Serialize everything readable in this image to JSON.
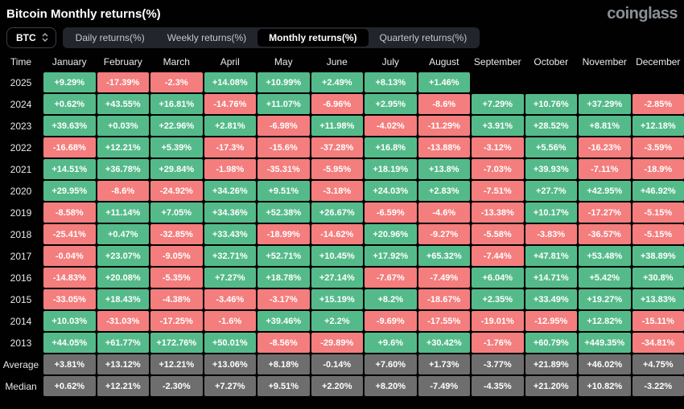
{
  "header": {
    "title": "Bitcoin Monthly returns(%)",
    "logo": "coinglass"
  },
  "controls": {
    "coin_selector": {
      "value": "BTC",
      "icon": "updown-chevron-icon"
    },
    "tabs": [
      {
        "label": "Daily returns(%)",
        "active": false
      },
      {
        "label": "Weekly returns(%)",
        "active": false
      },
      {
        "label": "Monthly returns(%)",
        "active": true
      },
      {
        "label": "Quarterly returns(%)",
        "active": false
      }
    ]
  },
  "chart_data": {
    "type": "heatmap",
    "title": "Bitcoin Monthly returns(%)",
    "columns": [
      "Time",
      "January",
      "February",
      "March",
      "April",
      "May",
      "June",
      "July",
      "August",
      "September",
      "October",
      "November",
      "December"
    ],
    "rows": [
      {
        "label": "2025",
        "values": [
          "+9.29%",
          "-17.39%",
          "-2.3%",
          "+14.08%",
          "+10.99%",
          "+2.49%",
          "+8.13%",
          "+1.46%",
          "",
          "",
          "",
          ""
        ]
      },
      {
        "label": "2024",
        "values": [
          "+0.62%",
          "+43.55%",
          "+16.81%",
          "-14.76%",
          "+11.07%",
          "-6.96%",
          "+2.95%",
          "-8.6%",
          "+7.29%",
          "+10.76%",
          "+37.29%",
          "-2.85%"
        ]
      },
      {
        "label": "2023",
        "values": [
          "+39.63%",
          "+0.03%",
          "+22.96%",
          "+2.81%",
          "-6.98%",
          "+11.98%",
          "-4.02%",
          "-11.29%",
          "+3.91%",
          "+28.52%",
          "+8.81%",
          "+12.18%"
        ]
      },
      {
        "label": "2022",
        "values": [
          "-16.68%",
          "+12.21%",
          "+5.39%",
          "-17.3%",
          "-15.6%",
          "-37.28%",
          "+16.8%",
          "-13.88%",
          "-3.12%",
          "+5.56%",
          "-16.23%",
          "-3.59%"
        ]
      },
      {
        "label": "2021",
        "values": [
          "+14.51%",
          "+36.78%",
          "+29.84%",
          "-1.98%",
          "-35.31%",
          "-5.95%",
          "+18.19%",
          "+13.8%",
          "-7.03%",
          "+39.93%",
          "-7.11%",
          "-18.9%"
        ]
      },
      {
        "label": "2020",
        "values": [
          "+29.95%",
          "-8.6%",
          "-24.92%",
          "+34.26%",
          "+9.51%",
          "-3.18%",
          "+24.03%",
          "+2.83%",
          "-7.51%",
          "+27.7%",
          "+42.95%",
          "+46.92%"
        ]
      },
      {
        "label": "2019",
        "values": [
          "-8.58%",
          "+11.14%",
          "+7.05%",
          "+34.36%",
          "+52.38%",
          "+26.67%",
          "-6.59%",
          "-4.6%",
          "-13.38%",
          "+10.17%",
          "-17.27%",
          "-5.15%"
        ]
      },
      {
        "label": "2018",
        "values": [
          "-25.41%",
          "+0.47%",
          "-32.85%",
          "+33.43%",
          "-18.99%",
          "-14.62%",
          "+20.96%",
          "-9.27%",
          "-5.58%",
          "-3.83%",
          "-36.57%",
          "-5.15%"
        ]
      },
      {
        "label": "2017",
        "values": [
          "-0.04%",
          "+23.07%",
          "-9.05%",
          "+32.71%",
          "+52.71%",
          "+10.45%",
          "+17.92%",
          "+65.32%",
          "-7.44%",
          "+47.81%",
          "+53.48%",
          "+38.89%"
        ]
      },
      {
        "label": "2016",
        "values": [
          "-14.83%",
          "+20.08%",
          "-5.35%",
          "+7.27%",
          "+18.78%",
          "+27.14%",
          "-7.67%",
          "-7.49%",
          "+6.04%",
          "+14.71%",
          "+5.42%",
          "+30.8%"
        ]
      },
      {
        "label": "2015",
        "values": [
          "-33.05%",
          "+18.43%",
          "-4.38%",
          "-3.46%",
          "-3.17%",
          "+15.19%",
          "+8.2%",
          "-18.67%",
          "+2.35%",
          "+33.49%",
          "+19.27%",
          "+13.83%"
        ]
      },
      {
        "label": "2014",
        "values": [
          "+10.03%",
          "-31.03%",
          "-17.25%",
          "-1.6%",
          "+39.46%",
          "+2.2%",
          "-9.69%",
          "-17.55%",
          "-19.01%",
          "-12.95%",
          "+12.82%",
          "-15.11%"
        ]
      },
      {
        "label": "2013",
        "values": [
          "+44.05%",
          "+61.77%",
          "+172.76%",
          "+50.01%",
          "-8.56%",
          "-29.89%",
          "+9.6%",
          "+30.42%",
          "-1.76%",
          "+60.79%",
          "+449.35%",
          "-34.81%"
        ]
      },
      {
        "label": "Average",
        "values": [
          "+3.81%",
          "+13.12%",
          "+12.21%",
          "+13.06%",
          "+8.18%",
          "-0.14%",
          "+7.60%",
          "+1.73%",
          "-3.77%",
          "+21.89%",
          "+46.02%",
          "+4.75%"
        ]
      },
      {
        "label": "Median",
        "values": [
          "+0.62%",
          "+12.21%",
          "-2.30%",
          "+7.27%",
          "+9.51%",
          "+2.20%",
          "+8.20%",
          "-7.49%",
          "-4.35%",
          "+21.20%",
          "+10.82%",
          "-3.22%"
        ]
      }
    ],
    "colors": {
      "positive": "#55ba8a",
      "negative": "#f47d7d",
      "summary": "#6e6e6e"
    },
    "legend_position": "none",
    "grid": false
  }
}
